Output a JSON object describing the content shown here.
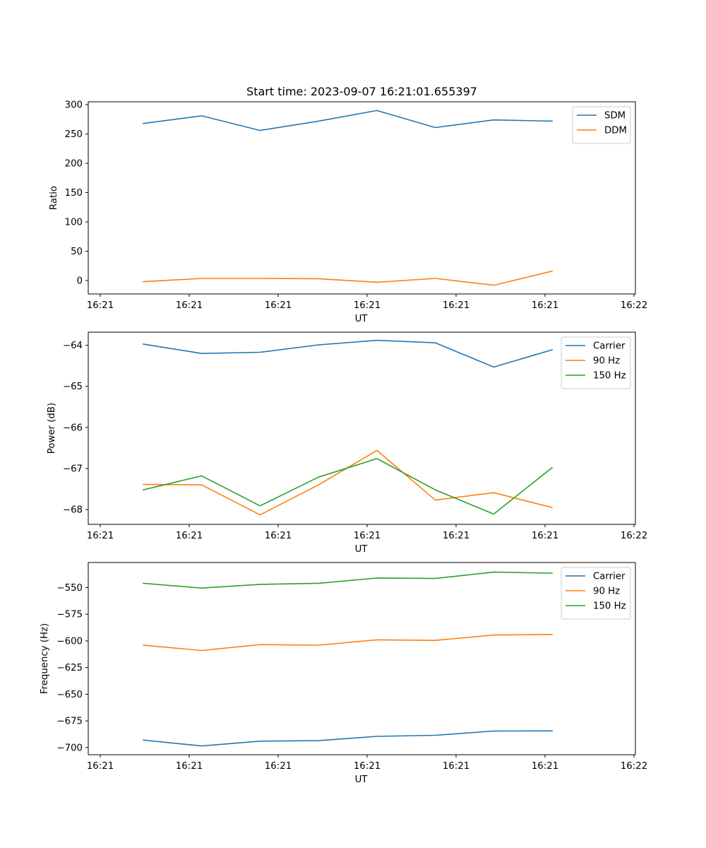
{
  "figure_title": "Start time: 2023-09-07 16:21:01.655397",
  "colors": {
    "blue": "#1f77b4",
    "orange": "#ff7f0e",
    "green": "#2ca02c",
    "axes": "#000000",
    "legend_border": "#cccccc"
  },
  "chart_data": [
    {
      "type": "line",
      "title": "Start time: 2023-09-07 16:21:01.655397",
      "xlabel": "UT",
      "ylabel": "Ratio",
      "x_tick_labels": [
        "16:21",
        "16:21",
        "16:21",
        "16:21",
        "16:21",
        "16:21",
        "16:21",
        "16:22"
      ],
      "yticks": [
        0,
        50,
        100,
        150,
        200,
        250,
        300
      ],
      "ytick_labels": [
        "0",
        "50",
        "100",
        "150",
        "200",
        "250",
        "300"
      ],
      "ylim": [
        -23,
        305
      ],
      "legend_position": "top-right",
      "x": [
        1,
        2,
        3,
        4,
        5,
        6,
        7,
        8
      ],
      "series": [
        {
          "name": "SDM",
          "color": "#1f77b4",
          "values": [
            268,
            281,
            256,
            272,
            290,
            261,
            274,
            272
          ]
        },
        {
          "name": "DDM",
          "color": "#ff7f0e",
          "values": [
            -2,
            3.5,
            3.5,
            3,
            -3,
            3.5,
            -8,
            16
          ]
        }
      ]
    },
    {
      "type": "line",
      "title": "",
      "xlabel": "UT",
      "ylabel": "Power (dB)",
      "x_tick_labels": [
        "16:21",
        "16:21",
        "16:21",
        "16:21",
        "16:21",
        "16:21",
        "16:21",
        "16:22"
      ],
      "yticks": [
        -68,
        -67,
        -66,
        -65,
        -64
      ],
      "ytick_labels": [
        "−68",
        "−67",
        "−66",
        "−65",
        "−64"
      ],
      "ylim": [
        -68.36,
        -63.68
      ],
      "legend_position": "top-right",
      "x": [
        1,
        2,
        3,
        4,
        5,
        6,
        7,
        8
      ],
      "series": [
        {
          "name": "Carrier",
          "color": "#1f77b4",
          "values": [
            -63.97,
            -64.2,
            -64.17,
            -63.99,
            -63.88,
            -63.94,
            -64.53,
            -64.11
          ]
        },
        {
          "name": "90 Hz",
          "color": "#ff7f0e",
          "values": [
            -67.39,
            -67.4,
            -68.13,
            -67.4,
            -66.56,
            -67.77,
            -67.59,
            -67.95
          ]
        },
        {
          "name": "150 Hz",
          "color": "#2ca02c",
          "values": [
            -67.52,
            -67.18,
            -67.91,
            -67.21,
            -66.76,
            -67.52,
            -68.11,
            -66.98
          ]
        }
      ]
    },
    {
      "type": "line",
      "title": "",
      "xlabel": "UT",
      "ylabel": "Frequency (Hz)",
      "x_tick_labels": [
        "16:21",
        "16:21",
        "16:21",
        "16:21",
        "16:21",
        "16:21",
        "16:21",
        "16:22"
      ],
      "yticks": [
        -700,
        -675,
        -650,
        -625,
        -600,
        -575,
        -550
      ],
      "ytick_labels": [
        "−700",
        "−675",
        "−650",
        "−625",
        "−600",
        "−575",
        "−550"
      ],
      "ylim": [
        -706.7,
        -526.5
      ],
      "legend_position": "top-right",
      "x": [
        1,
        2,
        3,
        4,
        5,
        6,
        7,
        8
      ],
      "series": [
        {
          "name": "Carrier",
          "color": "#1f77b4",
          "values": [
            -693,
            -698.5,
            -694,
            -693.5,
            -689.5,
            -688.5,
            -684.5,
            -684.3
          ]
        },
        {
          "name": "90 Hz",
          "color": "#ff7f0e",
          "values": [
            -604,
            -609,
            -603.5,
            -604,
            -599,
            -599.5,
            -594.5,
            -594
          ]
        },
        {
          "name": "150 Hz",
          "color": "#2ca02c",
          "values": [
            -546,
            -550.5,
            -547,
            -546,
            -541,
            -541.5,
            -535.5,
            -536.5
          ]
        }
      ]
    }
  ]
}
